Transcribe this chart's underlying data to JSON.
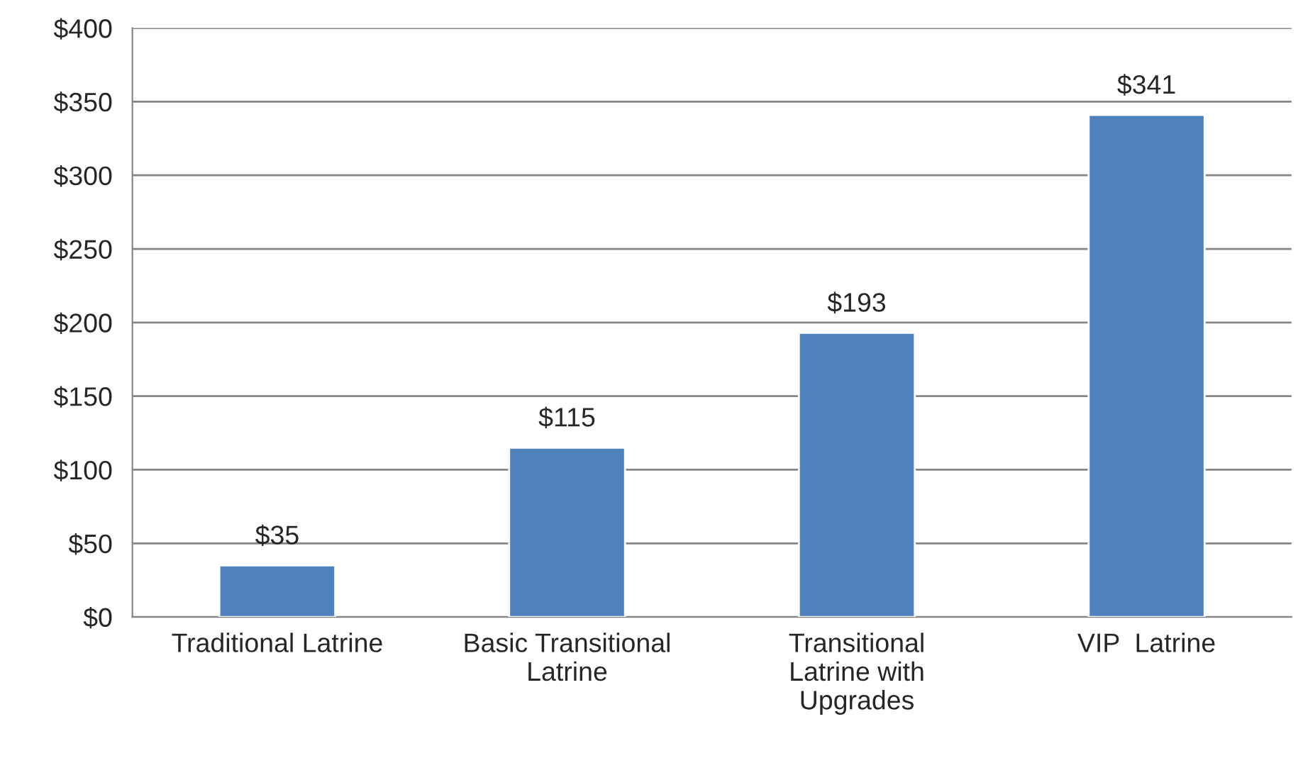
{
  "chart_data": {
    "type": "bar",
    "categories": [
      "Traditional Latrine",
      "Basic Transitional\nLatrine",
      "Transitional\nLatrine with\nUpgrades",
      "VIP  Latrine"
    ],
    "values": [
      35,
      115,
      193,
      341
    ],
    "value_labels": [
      "$35",
      "$115",
      "$193",
      "$341"
    ],
    "color": "#4f81bd",
    "ylim": [
      0,
      400
    ],
    "yticks": [
      {
        "value": 0,
        "label": "$0"
      },
      {
        "value": 50,
        "label": "$50"
      },
      {
        "value": 100,
        "label": "$100"
      },
      {
        "value": 150,
        "label": "$150"
      },
      {
        "value": 200,
        "label": "$200"
      },
      {
        "value": 250,
        "label": "$250"
      },
      {
        "value": 300,
        "label": "$300"
      },
      {
        "value": 350,
        "label": "$350"
      },
      {
        "value": 400,
        "label": "$400"
      }
    ],
    "grid": "y",
    "legend": false
  }
}
